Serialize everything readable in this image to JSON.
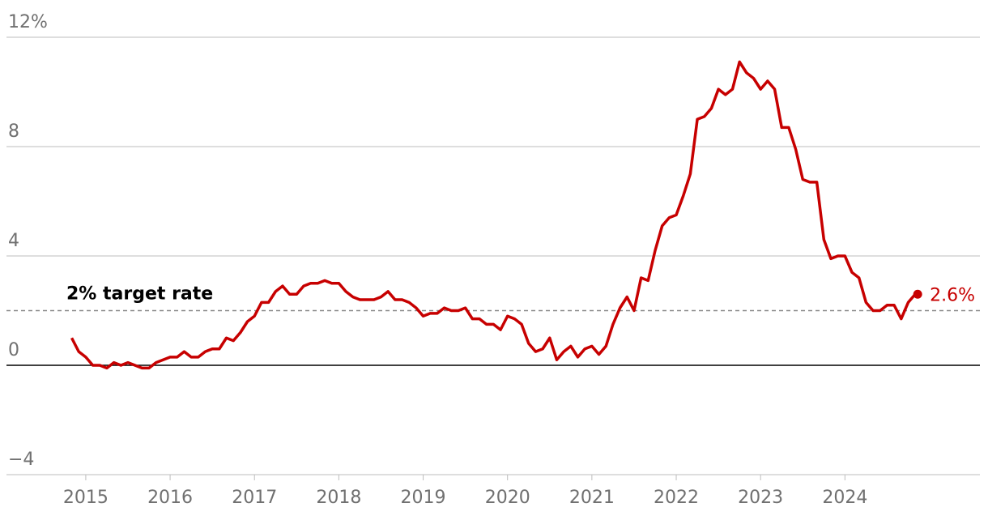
{
  "chart_data": {
    "type": "line",
    "x": [
      "2014-11",
      "2014-12",
      "2015-01",
      "2015-02",
      "2015-03",
      "2015-04",
      "2015-05",
      "2015-06",
      "2015-07",
      "2015-08",
      "2015-09",
      "2015-10",
      "2015-11",
      "2015-12",
      "2016-01",
      "2016-02",
      "2016-03",
      "2016-04",
      "2016-05",
      "2016-06",
      "2016-07",
      "2016-08",
      "2016-09",
      "2016-10",
      "2016-11",
      "2016-12",
      "2017-01",
      "2017-02",
      "2017-03",
      "2017-04",
      "2017-05",
      "2017-06",
      "2017-07",
      "2017-08",
      "2017-09",
      "2017-10",
      "2017-11",
      "2017-12",
      "2018-01",
      "2018-02",
      "2018-03",
      "2018-04",
      "2018-05",
      "2018-06",
      "2018-07",
      "2018-08",
      "2018-09",
      "2018-10",
      "2018-11",
      "2018-12",
      "2019-01",
      "2019-02",
      "2019-03",
      "2019-04",
      "2019-05",
      "2019-06",
      "2019-07",
      "2019-08",
      "2019-09",
      "2019-10",
      "2019-11",
      "2019-12",
      "2020-01",
      "2020-02",
      "2020-03",
      "2020-04",
      "2020-05",
      "2020-06",
      "2020-07",
      "2020-08",
      "2020-09",
      "2020-10",
      "2020-11",
      "2020-12",
      "2021-01",
      "2021-02",
      "2021-03",
      "2021-04",
      "2021-05",
      "2021-06",
      "2021-07",
      "2021-08",
      "2021-09",
      "2021-10",
      "2021-11",
      "2021-12",
      "2022-01",
      "2022-02",
      "2022-03",
      "2022-04",
      "2022-05",
      "2022-06",
      "2022-07",
      "2022-08",
      "2022-09",
      "2022-10",
      "2022-11",
      "2022-12",
      "2023-01",
      "2023-02",
      "2023-03",
      "2023-04",
      "2023-05",
      "2023-06",
      "2023-07",
      "2023-08",
      "2023-09",
      "2023-10",
      "2023-11",
      "2023-12",
      "2024-01",
      "2024-02",
      "2024-03",
      "2024-04",
      "2024-05",
      "2024-06",
      "2024-07",
      "2024-08",
      "2024-09",
      "2024-10",
      "2024-11"
    ],
    "series": [
      {
        "color": "#c70000",
        "values": [
          1.0,
          0.5,
          0.3,
          0.0,
          0.0,
          -0.1,
          0.1,
          0.0,
          0.1,
          0.0,
          -0.1,
          -0.1,
          0.1,
          0.2,
          0.3,
          0.3,
          0.5,
          0.3,
          0.3,
          0.5,
          0.6,
          0.6,
          1.0,
          0.9,
          1.2,
          1.6,
          1.8,
          2.3,
          2.3,
          2.7,
          2.9,
          2.6,
          2.6,
          2.9,
          3.0,
          3.0,
          3.1,
          3.0,
          3.0,
          2.7,
          2.5,
          2.4,
          2.4,
          2.4,
          2.5,
          2.7,
          2.4,
          2.4,
          2.3,
          2.1,
          1.8,
          1.9,
          1.9,
          2.1,
          2.0,
          2.0,
          2.1,
          1.7,
          1.7,
          1.5,
          1.5,
          1.3,
          1.8,
          1.7,
          1.5,
          0.8,
          0.5,
          0.6,
          1.0,
          0.2,
          0.5,
          0.7,
          0.3,
          0.6,
          0.7,
          0.4,
          0.7,
          1.5,
          2.1,
          2.5,
          2.0,
          3.2,
          3.1,
          4.2,
          5.1,
          5.4,
          5.5,
          6.2,
          7.0,
          9.0,
          9.1,
          9.4,
          10.1,
          9.9,
          10.1,
          11.1,
          10.7,
          10.5,
          10.1,
          10.4,
          10.1,
          8.7,
          8.7,
          7.9,
          6.8,
          6.7,
          6.7,
          4.6,
          3.9,
          4.0,
          4.0,
          3.4,
          3.2,
          2.3,
          2.0,
          2.0,
          2.2,
          2.2,
          1.7,
          2.3,
          2.6
        ],
        "value_labels": [
          null,
          null,
          null,
          null,
          null,
          null,
          null,
          null,
          null,
          null,
          null,
          null,
          null,
          null,
          null,
          null,
          null,
          null,
          null,
          null,
          null,
          null,
          null,
          null,
          null,
          null,
          null,
          null,
          null,
          null,
          null,
          null,
          null,
          null,
          null,
          null,
          null,
          null,
          null,
          null,
          null,
          null,
          null,
          null,
          null,
          null,
          null,
          null,
          null,
          null,
          null,
          null,
          null,
          null,
          null,
          null,
          null,
          null,
          null,
          null,
          null,
          null,
          null,
          null,
          null,
          null,
          null,
          null,
          null,
          null,
          null,
          null,
          null,
          null,
          null,
          null,
          null,
          null,
          null,
          null,
          null,
          null,
          null,
          null,
          null,
          null,
          null,
          null,
          null,
          null,
          null,
          null,
          null,
          null,
          null,
          null,
          null,
          null,
          null,
          null,
          null,
          null,
          null,
          null,
          null,
          null,
          null,
          null,
          null,
          null,
          null,
          null,
          null,
          null,
          null,
          null,
          null,
          null,
          null,
          null,
          "2.6%"
        ]
      }
    ],
    "reference_line": {
      "value": 2,
      "label": "2% target rate"
    },
    "xlim": [
      2014.06,
      2025.6
    ],
    "xticks": [
      2015,
      2016,
      2017,
      2018,
      2019,
      2020,
      2021,
      2022,
      2023,
      2024
    ],
    "ylim": [
      -4,
      12
    ],
    "yticks": [
      {
        "value": -4,
        "label": "−4"
      },
      0,
      4,
      8,
      {
        "value": 12,
        "label": "12%"
      }
    ],
    "grid": true
  }
}
